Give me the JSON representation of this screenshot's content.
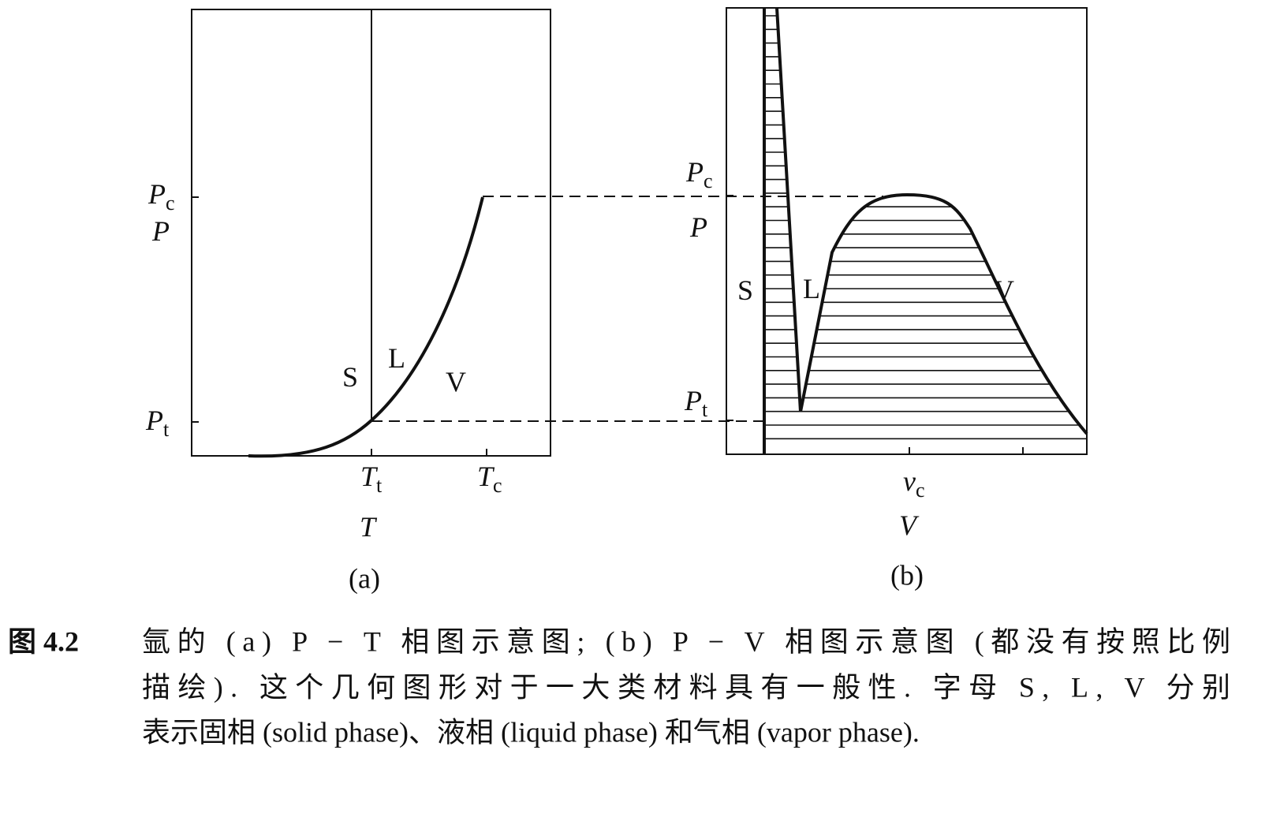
{
  "panel_a": {
    "labels": [
      {
        "text": "P",
        "sub": "c"
      },
      {
        "text": "P"
      },
      {
        "text": "P",
        "sub": "t"
      },
      {
        "text": "S"
      },
      {
        "text": "L"
      },
      {
        "text": "V"
      },
      {
        "text": "T",
        "sub": "t"
      },
      {
        "text": "T",
        "sub": "c"
      },
      {
        "text": "T"
      }
    ],
    "caption": "(a)"
  },
  "panel_b": {
    "labels": [
      {
        "text": "P",
        "sub": "c"
      },
      {
        "text": "P"
      },
      {
        "text": "P",
        "sub": "t"
      },
      {
        "text": "S"
      },
      {
        "text": "L"
      },
      {
        "text": "V"
      },
      {
        "text": "v",
        "sub": "c"
      },
      {
        "text": "V"
      }
    ],
    "caption": "(b)"
  },
  "figure_caption": {
    "label": "图 4.2",
    "lines": [
      "氩的 (a) P − T 相图示意图; (b) P − V 相图示意图 (都没有按照比例",
      "描绘). 这个几何图形对于一大类材料具有一般性. 字母 S, L, V 分别",
      "表示固相 (solid phase)、液相 (liquid phase) 和气相 (vapor phase)."
    ]
  }
}
